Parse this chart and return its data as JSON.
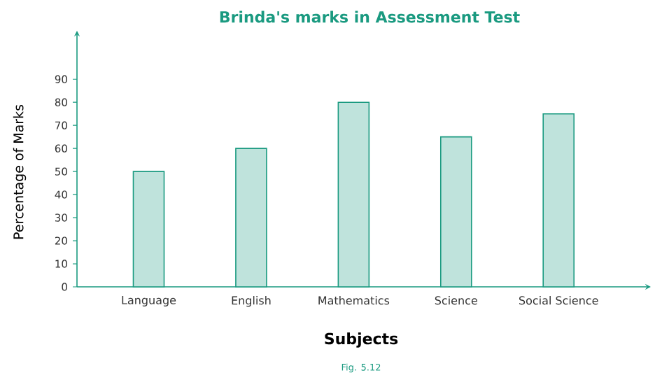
{
  "chart_data": {
    "type": "bar",
    "title": "Brinda's marks in Assessment Test",
    "xlabel": "Subjects",
    "ylabel": "Percentage of Marks",
    "annotations": [
      "Fig. 5.12"
    ],
    "categories": [
      "Language",
      "English",
      "Mathematics",
      "Science",
      "Social Science"
    ],
    "values": [
      50,
      60,
      80,
      65,
      75
    ],
    "color": "#bfe3dc",
    "ylim": [
      0,
      111
    ],
    "yticks": [
      0,
      10,
      20,
      30,
      40,
      50,
      60,
      70,
      80,
      90
    ],
    "grid": false
  }
}
